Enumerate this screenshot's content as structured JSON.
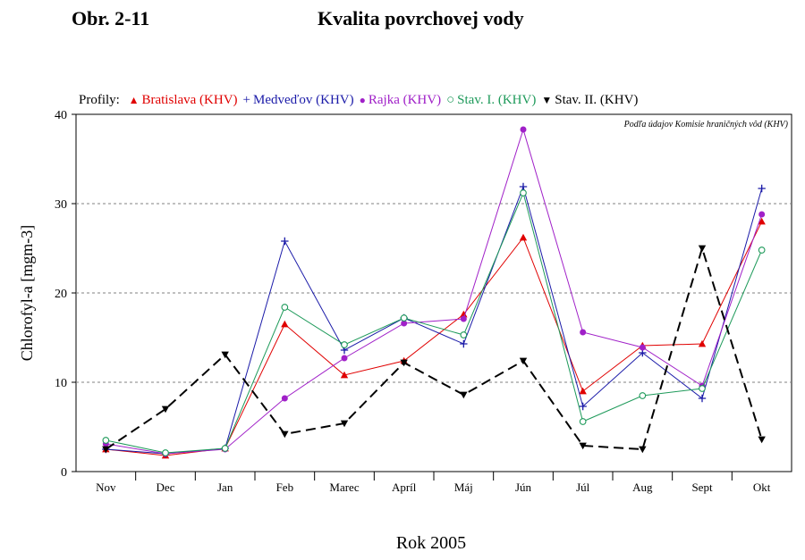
{
  "header": {
    "figure_label": "Obr. 2-11",
    "title": "Kvalita povrchovej vody"
  },
  "legend": {
    "prefix": "Profily:"
  },
  "chart_data": {
    "type": "line",
    "xlabel": "Rok 2005",
    "ylabel": "Chlorofyl-a [mgm-3]",
    "ylim": [
      0,
      40
    ],
    "yticks": [
      0,
      10,
      20,
      30,
      40
    ],
    "grid": "horizontal dashed",
    "legend_position": "top",
    "note": "Podľa údajov Komisie hraničných vôd (KHV)",
    "categories": [
      "Nov",
      "Dec",
      "Jan",
      "Feb",
      "Marec",
      "Apríl",
      "Máj",
      "Jún",
      "Júl",
      "Aug",
      "Sept",
      "Okt"
    ],
    "series": [
      {
        "name": "Bratislava (KHV)",
        "color": "#e00000",
        "marker": "triangle-up",
        "values": [
          2.5,
          1.8,
          2.6,
          16.5,
          10.8,
          12.4,
          17.6,
          26.2,
          9.0,
          14.1,
          14.3,
          28.0
        ]
      },
      {
        "name": "Medveďov (KHV)",
        "color": "#1a1aa8",
        "marker": "plus",
        "values": [
          2.5,
          2.0,
          2.6,
          25.8,
          13.6,
          17.2,
          14.3,
          31.9,
          7.3,
          13.3,
          8.2,
          31.7
        ]
      },
      {
        "name": "Rajka (KHV)",
        "color": "#a020c8",
        "marker": "dot",
        "values": [
          3.1,
          2.0,
          2.5,
          8.2,
          12.7,
          16.6,
          17.1,
          38.3,
          15.6,
          13.9,
          9.6,
          28.8
        ]
      },
      {
        "name": "Stav. I. (KHV)",
        "color": "#1e9a5a",
        "marker": "circle-open",
        "values": [
          3.5,
          2.1,
          2.6,
          18.4,
          14.2,
          17.2,
          15.3,
          31.2,
          5.6,
          8.5,
          9.3,
          24.8
        ]
      },
      {
        "name": "Stav. II. (KHV)",
        "color": "#000000",
        "marker": "triangle-down",
        "dashed": true,
        "values": [
          2.5,
          7.0,
          13.1,
          4.2,
          5.4,
          12.2,
          8.6,
          12.4,
          2.9,
          2.5,
          25.0,
          3.6
        ]
      }
    ]
  }
}
